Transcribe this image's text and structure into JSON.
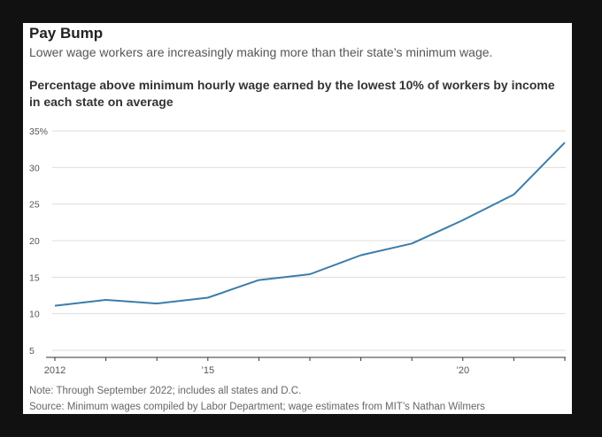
{
  "header": {
    "title": "Pay Bump",
    "subtitle": "Lower wage workers are increasingly making more than their state’s minimum wage."
  },
  "footer": {
    "note": "Note: Through September 2022; includes all states and D.C.",
    "source": "Source: Minimum wages compiled by Labor Department; wage estimates from MIT’s Nathan Wilmers"
  },
  "colors": {
    "line": "#3b7dab",
    "grid": "#dddddd",
    "axis": "#333333"
  },
  "chart_data": {
    "type": "line",
    "title": "Percentage above minimum hourly wage earned by the lowest 10% of workers by income in each state on average",
    "x": [
      2012,
      2013,
      2014,
      2015,
      2016,
      2017,
      2018,
      2019,
      2020,
      2021,
      2022
    ],
    "series": [
      {
        "values": [
          11.1,
          11.9,
          11.4,
          12.2,
          14.6,
          15.4,
          18.0,
          19.6,
          22.8,
          26.3,
          33.4
        ]
      }
    ],
    "ylim": [
      5,
      35
    ],
    "yticks": [
      5,
      10,
      15,
      20,
      25,
      30,
      35
    ],
    "ytick_labels": [
      "5",
      "10",
      "15",
      "20",
      "25",
      "30",
      "35%"
    ],
    "xticks": [
      2012,
      2015,
      2020
    ],
    "xtick_labels": [
      "2012",
      "’15",
      "’20"
    ],
    "grid": "horizontal",
    "legend": "none"
  }
}
